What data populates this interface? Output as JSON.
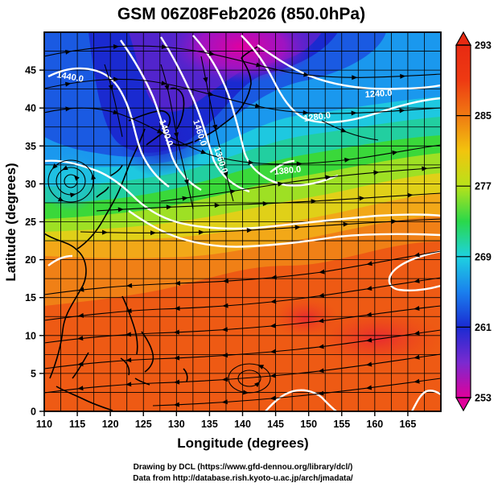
{
  "title": "GSM 06Z08Feb2026 (850.0hPa)",
  "map": {
    "xlabel": "Longitude (degrees)",
    "ylabel": "Latitude  (degrees)",
    "lon_range": [
      110,
      170
    ],
    "lat_range": [
      0,
      50
    ],
    "x_ticks": [
      "110",
      "115",
      "120",
      "125",
      "130",
      "135",
      "140",
      "145",
      "150",
      "155",
      "160",
      "165"
    ],
    "y_ticks": [
      "0",
      "5",
      "10",
      "15",
      "20",
      "25",
      "30",
      "35",
      "40",
      "45"
    ],
    "grid": true
  },
  "colorbar": {
    "labels": [
      "293",
      "285",
      "277",
      "269",
      "261",
      "253"
    ],
    "min": 253,
    "max": 293,
    "colors": [
      "#e0009a",
      "#7a2ad0",
      "#1a2bd2",
      "#1a80ee",
      "#1ed2e0",
      "#2ad84a",
      "#b8e21a",
      "#f2c40e",
      "#f07a12",
      "#ee3a12",
      "#e82a12"
    ]
  },
  "contour_labels": [
    "1440.0",
    "1240.0",
    "1280.0",
    "1400.0",
    "1460.0",
    "1360.0",
    "1380.0"
  ],
  "credits": {
    "line1": "Drawing by DCL (https://www.gfd-dennou.org/library/dcl/)",
    "line2": "Data from http://database.rish.kyoto-u.ac.jp/arch/jmadata/"
  }
}
